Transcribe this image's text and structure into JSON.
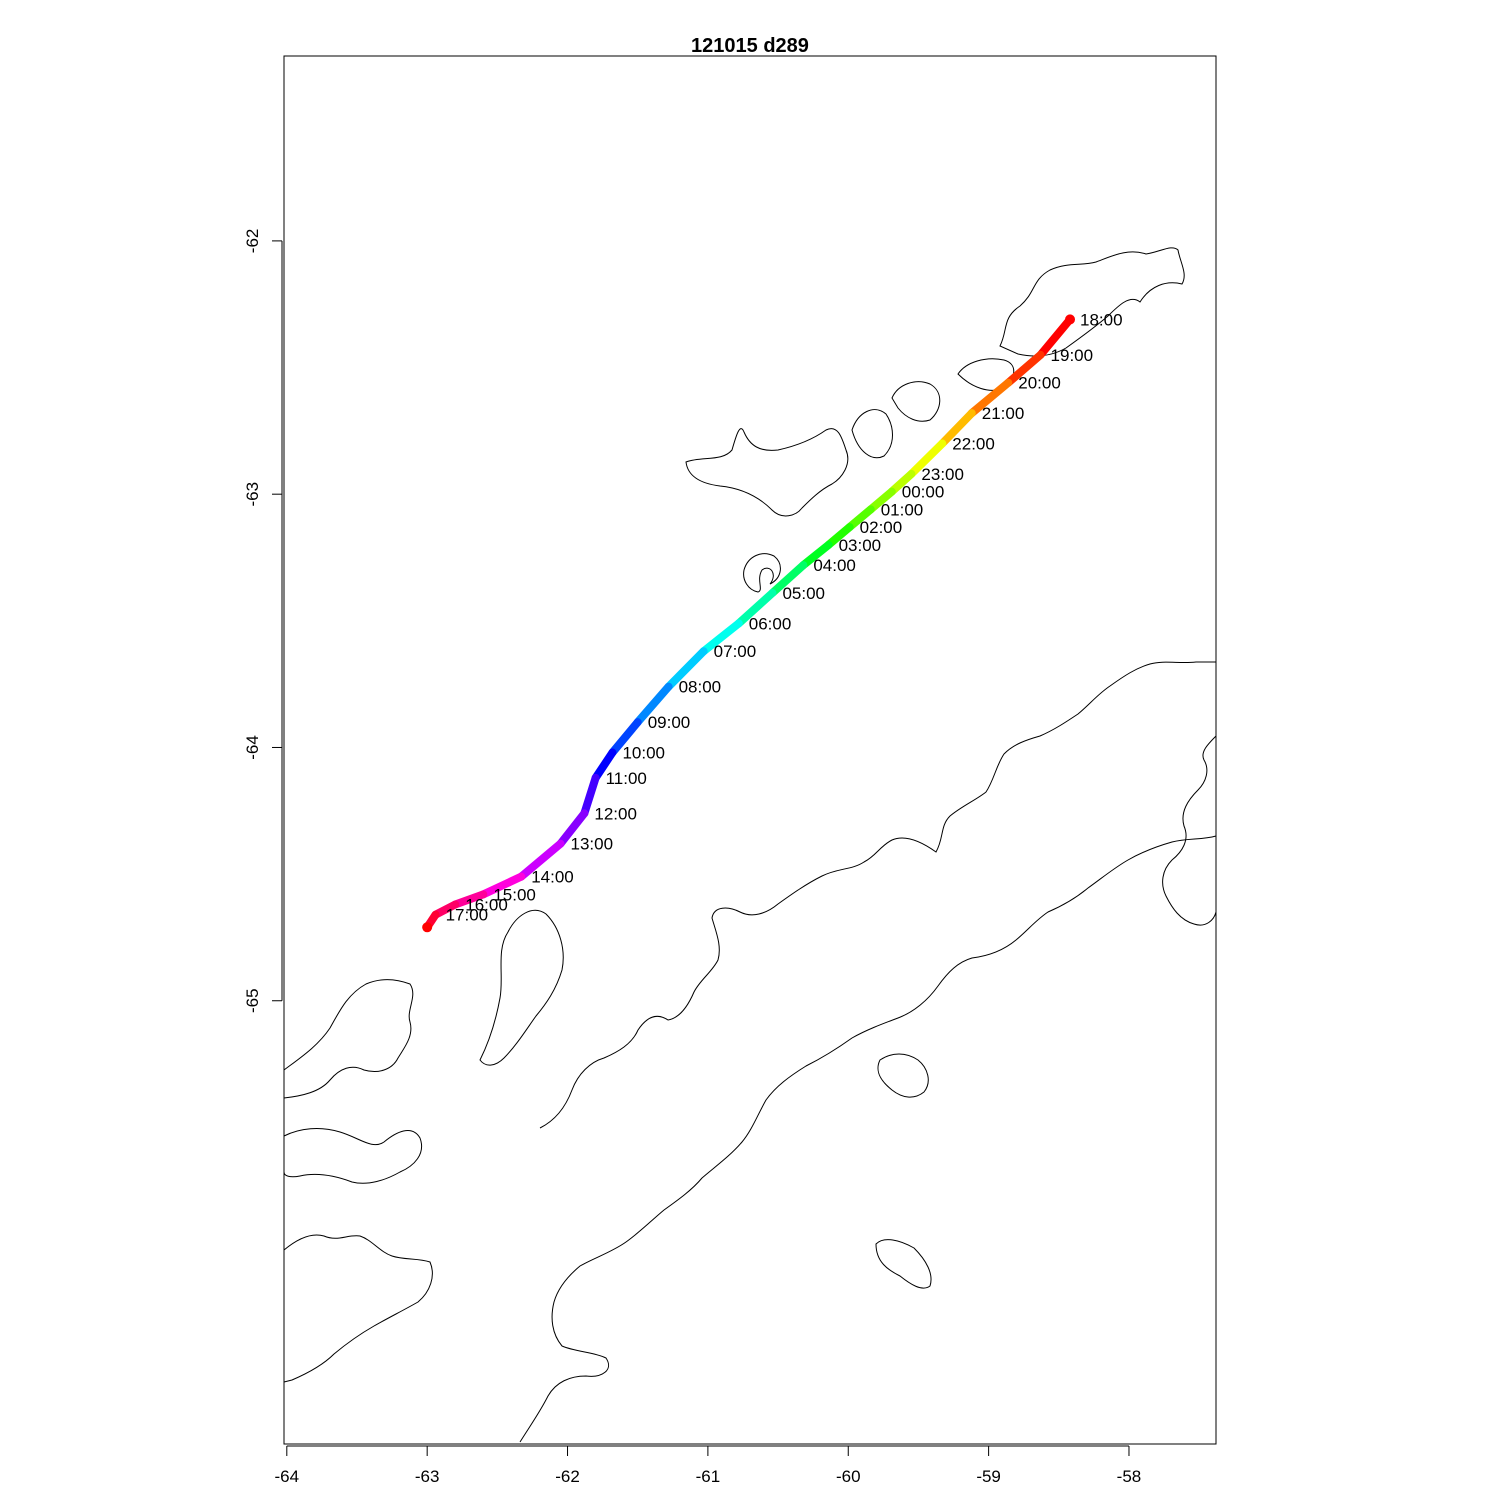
{
  "title": "121015   d289",
  "chart_data": {
    "type": "map-track",
    "title": "121015   d289",
    "xlabel": "",
    "ylabel": "",
    "xlim": [
      -64.02,
      -57.38
    ],
    "ylim": [
      -66.75,
      -61.27
    ],
    "x_ticks": [
      {
        "value": -64,
        "label": "-64"
      },
      {
        "value": -63,
        "label": "-63"
      },
      {
        "value": -62,
        "label": "-62"
      },
      {
        "value": -61,
        "label": "-61"
      },
      {
        "value": -60,
        "label": "-60"
      },
      {
        "value": -59,
        "label": "-59"
      },
      {
        "value": -58,
        "label": "-58"
      }
    ],
    "y_ticks": [
      {
        "value": -62,
        "label": "-62"
      },
      {
        "value": -63,
        "label": "-63"
      },
      {
        "value": -64,
        "label": "-64"
      },
      {
        "value": -65,
        "label": "-65"
      }
    ],
    "track": [
      {
        "time": "18:00",
        "lon": -58.42,
        "lat": -62.31,
        "color": "#ff0000"
      },
      {
        "time": "19:00",
        "lon": -58.63,
        "lat": -62.45,
        "color": "#ff3300"
      },
      {
        "time": "20:00",
        "lon": -58.86,
        "lat": -62.56,
        "color": "#ff7700"
      },
      {
        "time": "21:00",
        "lon": -59.12,
        "lat": -62.68,
        "color": "#ffbb00"
      },
      {
        "time": "22:00",
        "lon": -59.33,
        "lat": -62.8,
        "color": "#eeff00"
      },
      {
        "time": "23:00",
        "lon": -59.55,
        "lat": -62.92,
        "color": "#bbff00"
      },
      {
        "time": "00:00",
        "lon": -59.69,
        "lat": -62.99,
        "color": "#88ff00"
      },
      {
        "time": "01:00",
        "lon": -59.84,
        "lat": -63.06,
        "color": "#55ff00"
      },
      {
        "time": "02:00",
        "lon": -59.99,
        "lat": -63.13,
        "color": "#22ff00"
      },
      {
        "time": "03:00",
        "lon": -60.14,
        "lat": -63.2,
        "color": "#00ff22"
      },
      {
        "time": "04:00",
        "lon": -60.32,
        "lat": -63.28,
        "color": "#00ff66"
      },
      {
        "time": "05:00",
        "lon": -60.54,
        "lat": -63.39,
        "color": "#00ffaa"
      },
      {
        "time": "06:00",
        "lon": -60.78,
        "lat": -63.51,
        "color": "#00ffee"
      },
      {
        "time": "07:00",
        "lon": -61.03,
        "lat": -63.62,
        "color": "#00ccff"
      },
      {
        "time": "08:00",
        "lon": -61.28,
        "lat": -63.76,
        "color": "#0088ff"
      },
      {
        "time": "09:00",
        "lon": -61.5,
        "lat": -63.9,
        "color": "#0044ff"
      },
      {
        "time": "10:00",
        "lon": -61.68,
        "lat": -64.02,
        "color": "#0000ff"
      },
      {
        "time": "11:00",
        "lon": -61.8,
        "lat": -64.12,
        "color": "#4400ff"
      },
      {
        "time": "12:00",
        "lon": -61.88,
        "lat": -64.26,
        "color": "#8800ff"
      },
      {
        "time": "13:00",
        "lon": -62.05,
        "lat": -64.38,
        "color": "#cc00ff"
      },
      {
        "time": "14:00",
        "lon": -62.33,
        "lat": -64.51,
        "color": "#ff00dd"
      },
      {
        "time": "15:00",
        "lon": -62.6,
        "lat": -64.58,
        "color": "#ff0099"
      },
      {
        "time": "16:00",
        "lon": -62.8,
        "lat": -64.62,
        "color": "#ff0066"
      },
      {
        "time": "17:00",
        "lon": -62.94,
        "lat": -64.66,
        "color": "#ff0033"
      },
      {
        "time": "",
        "lon": -63.0,
        "lat": -64.71,
        "color": "#ff0000"
      }
    ]
  }
}
